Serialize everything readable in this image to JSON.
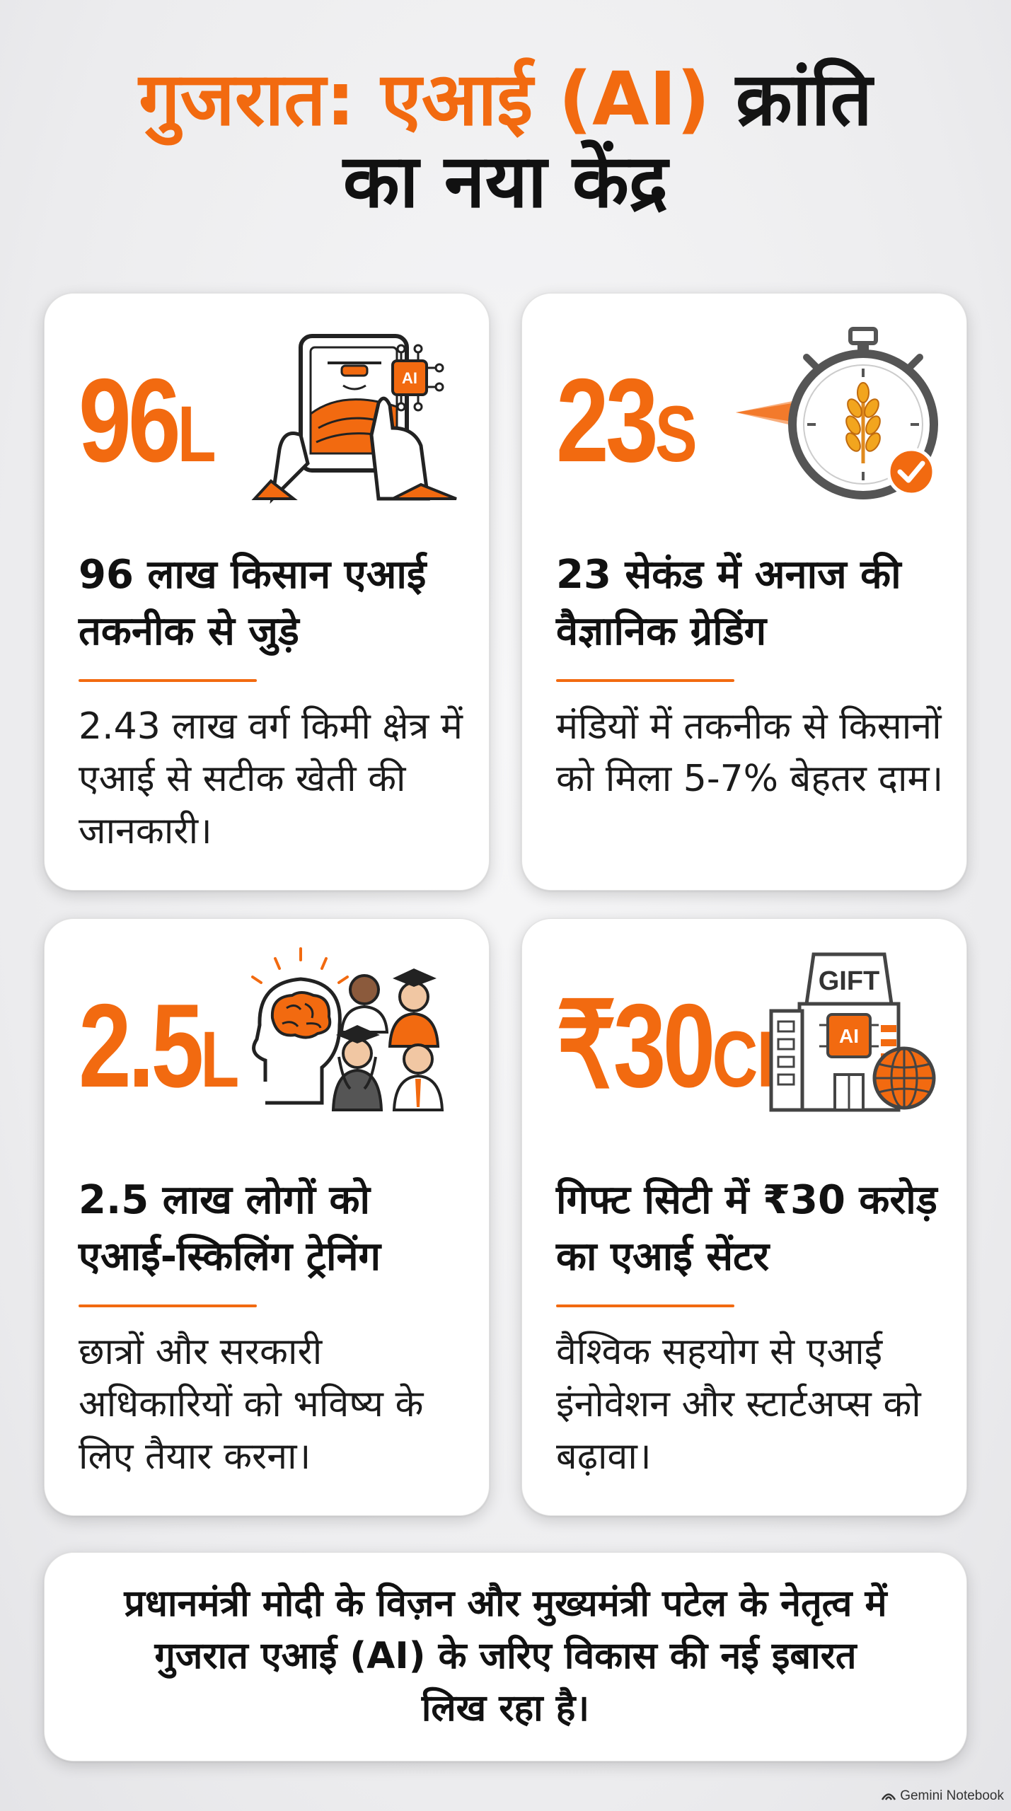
{
  "title": {
    "line1_main": "गुजरात: एआई ",
    "line1_ai": "(AI)",
    "line1_end": " क्रांति",
    "line2": "का नया केंद्र"
  },
  "cards": [
    {
      "stat_value": "96",
      "stat_unit": "L",
      "heading": "96 लाख किसान एआई तकनीक से जुड़े",
      "body": "2.43 लाख वर्ग किमी क्षेत्र में एआई से सटीक खेती की जानकारी।",
      "icon": "tablet-drone-field-icon",
      "icon_badge": "AI"
    },
    {
      "stat_value": "23",
      "stat_unit": "S",
      "heading": "23 सेकंड में अनाज की वैज्ञानिक ग्रेडिंग",
      "body": "मंडियों में तकनीक से किसानों को मिला 5-7% बेहतर दाम।",
      "icon": "stopwatch-wheat-check-icon"
    },
    {
      "stat_value": "2.5",
      "stat_unit": "L",
      "heading": "2.5 लाख लोगों को एआई-स्किलिंग ट्रेनिंग",
      "body": "छात्रों और सरकारी अधिकारियों को भविष्य के लिए तैयार करना।",
      "icon": "brain-graduates-icon"
    },
    {
      "stat_value": "₹30",
      "stat_unit": "CR",
      "heading": "गिफ्ट सिटी में ₹30 करोड़ का एआई सेंटर",
      "body": "वैश्विक सहयोग से एआई इंनोवेशन और स्टार्टअप्स को बढ़ावा।",
      "icon": "gift-building-globe-icon",
      "icon_badge": "AI",
      "icon_sign": "GIFT"
    }
  ],
  "footer": "प्रधानमंत्री मोदी के विज़न और मुख्यमंत्री पटेल के नेतृत्व में गुजरात एआई (AI) के जरिए विकास की नई इबारत लिख रहा है।",
  "watermark": "Gemini Notebook",
  "colors": {
    "accent": "#f26a10",
    "text": "#111111",
    "card": "#ffffff"
  }
}
